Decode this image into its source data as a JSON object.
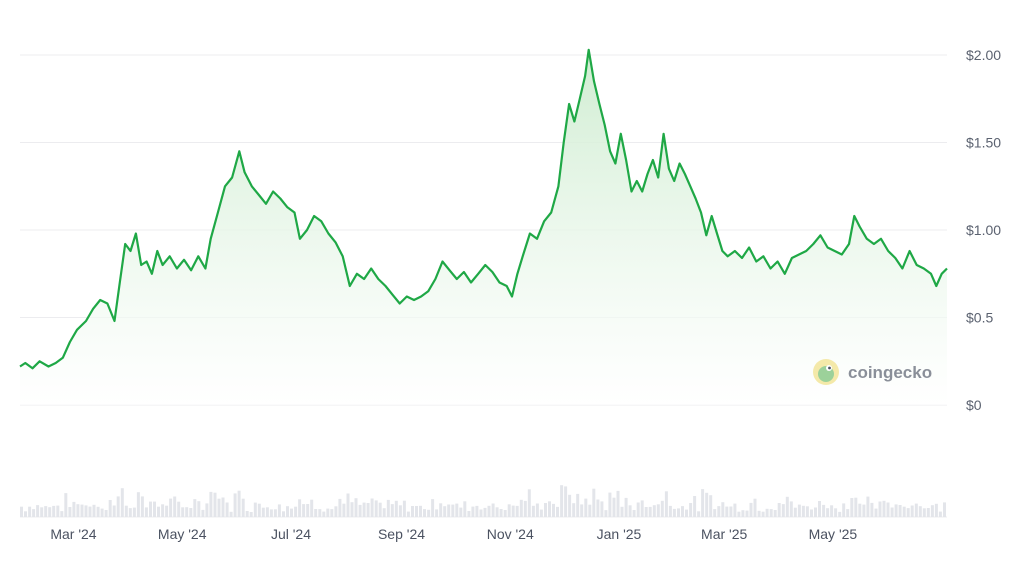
{
  "chart_data": {
    "type": "area",
    "ylim": [
      0,
      2.0
    ],
    "y_ticks": [
      {
        "value": 0,
        "label": "$0"
      },
      {
        "value": 0.5,
        "label": "$0.5"
      },
      {
        "value": 1.0,
        "label": "$1.00"
      },
      {
        "value": 1.5,
        "label": "$1.50"
      },
      {
        "value": 2.0,
        "label": "$2.00"
      }
    ],
    "x_ticks": [
      {
        "date": "2024-03-01",
        "label": "Mar '24"
      },
      {
        "date": "2024-05-01",
        "label": "May '24"
      },
      {
        "date": "2024-07-01",
        "label": "Jul '24"
      },
      {
        "date": "2024-09-01",
        "label": "Sep '24"
      },
      {
        "date": "2024-11-01",
        "label": "Nov '24"
      },
      {
        "date": "2025-01-01",
        "label": "Jan '25"
      },
      {
        "date": "2025-03-01",
        "label": "Mar '25"
      },
      {
        "date": "2025-05-01",
        "label": "May '25"
      }
    ],
    "x_range": [
      "2024-01-31",
      "2025-07-04"
    ],
    "series": [
      {
        "color": "#1fa846",
        "points": [
          [
            "2024-01-31",
            0.22
          ],
          [
            "2024-02-03",
            0.24
          ],
          [
            "2024-02-07",
            0.21
          ],
          [
            "2024-02-11",
            0.25
          ],
          [
            "2024-02-16",
            0.22
          ],
          [
            "2024-02-20",
            0.24
          ],
          [
            "2024-02-24",
            0.27
          ],
          [
            "2024-02-28",
            0.36
          ],
          [
            "2024-03-03",
            0.43
          ],
          [
            "2024-03-08",
            0.48
          ],
          [
            "2024-03-12",
            0.55
          ],
          [
            "2024-03-16",
            0.6
          ],
          [
            "2024-03-20",
            0.58
          ],
          [
            "2024-03-24",
            0.48
          ],
          [
            "2024-03-27",
            0.7
          ],
          [
            "2024-03-30",
            0.92
          ],
          [
            "2024-04-02",
            0.88
          ],
          [
            "2024-04-05",
            0.98
          ],
          [
            "2024-04-08",
            0.8
          ],
          [
            "2024-04-11",
            0.82
          ],
          [
            "2024-04-14",
            0.75
          ],
          [
            "2024-04-17",
            0.88
          ],
          [
            "2024-04-20",
            0.8
          ],
          [
            "2024-04-24",
            0.85
          ],
          [
            "2024-04-28",
            0.78
          ],
          [
            "2024-05-02",
            0.83
          ],
          [
            "2024-05-06",
            0.77
          ],
          [
            "2024-05-10",
            0.85
          ],
          [
            "2024-05-14",
            0.78
          ],
          [
            "2024-05-17",
            0.95
          ],
          [
            "2024-05-21",
            1.1
          ],
          [
            "2024-05-25",
            1.25
          ],
          [
            "2024-05-29",
            1.3
          ],
          [
            "2024-06-02",
            1.45
          ],
          [
            "2024-06-05",
            1.33
          ],
          [
            "2024-06-09",
            1.25
          ],
          [
            "2024-06-13",
            1.2
          ],
          [
            "2024-06-17",
            1.15
          ],
          [
            "2024-06-21",
            1.22
          ],
          [
            "2024-06-25",
            1.18
          ],
          [
            "2024-06-29",
            1.13
          ],
          [
            "2024-07-03",
            1.1
          ],
          [
            "2024-07-06",
            0.95
          ],
          [
            "2024-07-10",
            1.0
          ],
          [
            "2024-07-14",
            1.08
          ],
          [
            "2024-07-18",
            1.05
          ],
          [
            "2024-07-22",
            0.98
          ],
          [
            "2024-07-26",
            0.93
          ],
          [
            "2024-07-30",
            0.85
          ],
          [
            "2024-08-03",
            0.68
          ],
          [
            "2024-08-07",
            0.75
          ],
          [
            "2024-08-11",
            0.72
          ],
          [
            "2024-08-15",
            0.78
          ],
          [
            "2024-08-19",
            0.72
          ],
          [
            "2024-08-23",
            0.68
          ],
          [
            "2024-08-27",
            0.63
          ],
          [
            "2024-08-31",
            0.58
          ],
          [
            "2024-09-04",
            0.62
          ],
          [
            "2024-09-08",
            0.6
          ],
          [
            "2024-09-12",
            0.62
          ],
          [
            "2024-09-16",
            0.65
          ],
          [
            "2024-09-20",
            0.72
          ],
          [
            "2024-09-24",
            0.82
          ],
          [
            "2024-09-28",
            0.77
          ],
          [
            "2024-10-02",
            0.72
          ],
          [
            "2024-10-06",
            0.76
          ],
          [
            "2024-10-10",
            0.7
          ],
          [
            "2024-10-14",
            0.75
          ],
          [
            "2024-10-18",
            0.8
          ],
          [
            "2024-10-22",
            0.76
          ],
          [
            "2024-10-26",
            0.7
          ],
          [
            "2024-10-30",
            0.68
          ],
          [
            "2024-11-02",
            0.62
          ],
          [
            "2024-11-05",
            0.75
          ],
          [
            "2024-11-08",
            0.85
          ],
          [
            "2024-11-12",
            0.98
          ],
          [
            "2024-11-16",
            0.95
          ],
          [
            "2024-11-20",
            1.05
          ],
          [
            "2024-11-24",
            1.1
          ],
          [
            "2024-11-28",
            1.25
          ],
          [
            "2024-12-01",
            1.5
          ],
          [
            "2024-12-04",
            1.72
          ],
          [
            "2024-12-07",
            1.62
          ],
          [
            "2024-12-10",
            1.75
          ],
          [
            "2024-12-13",
            1.88
          ],
          [
            "2024-12-15",
            2.03
          ],
          [
            "2024-12-18",
            1.85
          ],
          [
            "2024-12-21",
            1.72
          ],
          [
            "2024-12-24",
            1.6
          ],
          [
            "2024-12-27",
            1.45
          ],
          [
            "2024-12-30",
            1.38
          ],
          [
            "2025-01-02",
            1.55
          ],
          [
            "2025-01-05",
            1.4
          ],
          [
            "2025-01-08",
            1.22
          ],
          [
            "2025-01-11",
            1.28
          ],
          [
            "2025-01-14",
            1.22
          ],
          [
            "2025-01-17",
            1.32
          ],
          [
            "2025-01-20",
            1.4
          ],
          [
            "2025-01-23",
            1.3
          ],
          [
            "2025-01-26",
            1.55
          ],
          [
            "2025-01-29",
            1.35
          ],
          [
            "2025-02-01",
            1.28
          ],
          [
            "2025-02-04",
            1.38
          ],
          [
            "2025-02-07",
            1.32
          ],
          [
            "2025-02-10",
            1.25
          ],
          [
            "2025-02-13",
            1.18
          ],
          [
            "2025-02-16",
            1.1
          ],
          [
            "2025-02-19",
            0.97
          ],
          [
            "2025-02-22",
            1.08
          ],
          [
            "2025-02-25",
            0.98
          ],
          [
            "2025-02-28",
            0.88
          ],
          [
            "2025-03-03",
            0.85
          ],
          [
            "2025-03-07",
            0.88
          ],
          [
            "2025-03-11",
            0.84
          ],
          [
            "2025-03-15",
            0.9
          ],
          [
            "2025-03-19",
            0.82
          ],
          [
            "2025-03-23",
            0.85
          ],
          [
            "2025-03-27",
            0.78
          ],
          [
            "2025-03-31",
            0.82
          ],
          [
            "2025-04-04",
            0.75
          ],
          [
            "2025-04-08",
            0.84
          ],
          [
            "2025-04-12",
            0.86
          ],
          [
            "2025-04-16",
            0.88
          ],
          [
            "2025-04-20",
            0.92
          ],
          [
            "2025-04-24",
            0.97
          ],
          [
            "2025-04-28",
            0.9
          ],
          [
            "2025-05-02",
            0.88
          ],
          [
            "2025-05-06",
            0.86
          ],
          [
            "2025-05-10",
            0.92
          ],
          [
            "2025-05-13",
            1.08
          ],
          [
            "2025-05-16",
            1.02
          ],
          [
            "2025-05-20",
            0.95
          ],
          [
            "2025-05-24",
            0.92
          ],
          [
            "2025-05-28",
            0.95
          ],
          [
            "2025-06-01",
            0.88
          ],
          [
            "2025-06-05",
            0.84
          ],
          [
            "2025-06-09",
            0.78
          ],
          [
            "2025-06-13",
            0.88
          ],
          [
            "2025-06-17",
            0.8
          ],
          [
            "2025-06-21",
            0.78
          ],
          [
            "2025-06-25",
            0.75
          ],
          [
            "2025-06-28",
            0.68
          ],
          [
            "2025-07-01",
            0.75
          ],
          [
            "2025-07-04",
            0.78
          ]
        ]
      }
    ],
    "volume_bars": true,
    "volume_color": "#e3e5ea",
    "grid": true,
    "watermark": "coingecko"
  },
  "colors": {
    "line": "#1fa846",
    "fill_top": "#cdeccf",
    "fill_bottom": "#ffffff",
    "grid": "#ececef",
    "volume": "#e3e5ea"
  }
}
